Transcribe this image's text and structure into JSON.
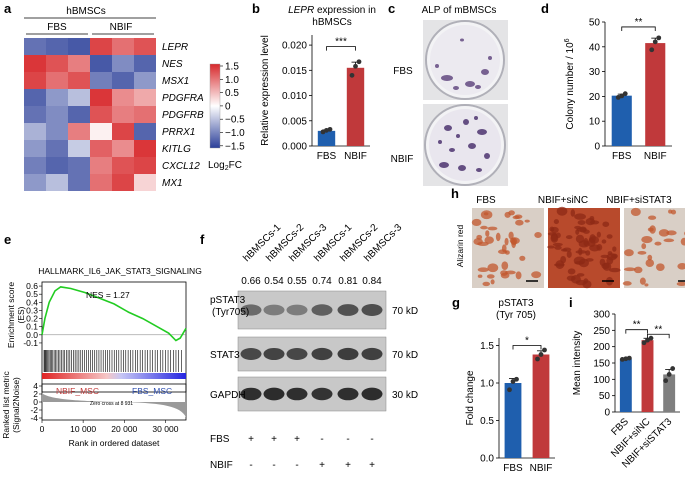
{
  "panels": {
    "a": {
      "label": "a",
      "group_title": "hBMSCs",
      "group_fbs": "FBS",
      "group_nbif": "NBIF",
      "genes": [
        "LEPR",
        "NES",
        "MSX1",
        "PDGFRA",
        "PDGFRB",
        "PRRX1",
        "KITLG",
        "CXCL12",
        "MX1"
      ],
      "colorbar_ticks": [
        "1.5",
        "1.0",
        "0.5",
        "0",
        "−0.5",
        "−1.0",
        "−1.5"
      ],
      "colorbar_label": "Log2FC",
      "colorbar_label_main": "Log",
      "colorbar_label_sub": "2",
      "colorbar_label_tail": "FC",
      "heatmap": [
        [
          -1.1,
          -1.2,
          -1.3,
          1.3,
          1.0,
          1.2
        ],
        [
          1.4,
          1.2,
          0.9,
          -1.3,
          -0.9,
          -1.2
        ],
        [
          1.3,
          1.0,
          1.2,
          -1.0,
          -1.2,
          -0.8
        ],
        [
          -1.2,
          -0.8,
          -0.5,
          1.4,
          0.8,
          0.6
        ],
        [
          -1.1,
          -0.9,
          -1.2,
          1.2,
          0.9,
          1.0
        ],
        [
          -0.6,
          -0.9,
          0.9,
          0.1,
          1.3,
          -1.2
        ],
        [
          -0.8,
          -1.1,
          -0.4,
          1.1,
          0.8,
          1.4
        ],
        [
          -1.0,
          -1.2,
          -1.1,
          0.9,
          1.2,
          1.3
        ],
        [
          -0.8,
          -0.5,
          -1.1,
          1.0,
          1.3,
          0.3
        ]
      ]
    },
    "b": {
      "label": "b",
      "title_gene": "LEPR",
      "title_rest": " expression in",
      "title_line2": "hBMSCs",
      "significance": "***"
    },
    "c": {
      "label": "c",
      "title": "ALP of mBMSCs",
      "row_fbs": "FBS",
      "row_nbif": "NBIF"
    },
    "d": {
      "label": "d",
      "significance": "**"
    },
    "e": {
      "label": "e",
      "gene_set": "HALLMARK_IL6_JAK_STAT3_SIGNALING",
      "nes": "NES = 1.27",
      "ylabel_es": "Enrichment score",
      "ylabel_es2": "(ES)",
      "ylabel_rank": "Ranked list metric",
      "ylabel_rank2": "(Signal2Noise)",
      "es_ticks": [
        "0.6",
        "0.5",
        "0.4",
        "0.3",
        "0.2",
        "0.1",
        "0.0",
        "-0.1"
      ],
      "rank_ticks": [
        "4",
        "2",
        "0",
        "-2",
        "-4"
      ],
      "x_ticks": [
        "0",
        "10 000",
        "20 000",
        "30 000"
      ],
      "xlabel": "Rank in ordered dataset",
      "left_label": "NBIF_MSC",
      "right_label": "FBS_MSC",
      "zero_cross": "Zero cross at 8 931"
    },
    "f": {
      "label": "f",
      "lanes": [
        "hBMSCs-1",
        "hBMSCs-2",
        "hBMSCs-3",
        "hBMSCs-1",
        "hBMSCs-2",
        "hBMSCs-3"
      ],
      "values": [
        "0.66",
        "0.54",
        "0.55",
        "0.74",
        "0.81",
        "0.84"
      ],
      "blots": [
        {
          "name": "pSTAT3",
          "name2": "(Tyr705)",
          "size": "70 kD"
        },
        {
          "name": "STAT3",
          "name2": "",
          "size": "70 kD"
        },
        {
          "name": "GAPDH",
          "name2": "",
          "size": "30 kD"
        }
      ],
      "row_fbs": "FBS",
      "row_nbif": "NBIF",
      "fbs_signs": [
        "+",
        "+",
        "+",
        "-",
        "-",
        "-"
      ],
      "nbif_signs": [
        "-",
        "-",
        "-",
        "+",
        "+",
        "+"
      ]
    },
    "g": {
      "label": "g",
      "title": "pSTAT3",
      "title2": "(Tyr 705)",
      "significance": "*"
    },
    "h": {
      "label": "h",
      "columns": [
        "FBS",
        "NBIF+siNC",
        "NBIF+siSTAT3"
      ],
      "row_label": "Alizarin red"
    },
    "i": {
      "label": "i",
      "sig1": "**",
      "sig2": "**"
    }
  },
  "chart_data": [
    {
      "type": "bar",
      "panel": "b",
      "categories": [
        "FBS",
        "NBIF"
      ],
      "values": [
        0.003,
        0.0155
      ],
      "points": [
        [
          0.0028,
          0.0031,
          0.0033
        ],
        [
          0.014,
          0.0158,
          0.0167
        ]
      ],
      "ylabel": "Relative expression level",
      "yticks": [
        "0.000",
        "0.005",
        "0.010",
        "0.015",
        "0.020"
      ],
      "ylim": [
        0,
        0.022
      ],
      "colors": [
        "#1f5fae",
        "#c0393b"
      ]
    },
    {
      "type": "bar",
      "panel": "d",
      "categories": [
        "FBS",
        "NBIF"
      ],
      "values": [
        20.3,
        41.5
      ],
      "points": [
        [
          19.6,
          20.2,
          21.1
        ],
        [
          38.8,
          42.0,
          43.6
        ]
      ],
      "ylabel": "Colony number / 10",
      "ylabel_sup": "6",
      "yticks": [
        "0",
        "10",
        "20",
        "30",
        "40",
        "50"
      ],
      "ylim": [
        0,
        50
      ],
      "colors": [
        "#1f5fae",
        "#c0393b"
      ]
    },
    {
      "type": "bar",
      "panel": "g",
      "categories": [
        "FBS",
        "NBIF"
      ],
      "values": [
        1.0,
        1.38
      ],
      "points": [
        [
          0.91,
          1.02,
          1.05
        ],
        [
          1.32,
          1.38,
          1.44
        ]
      ],
      "ylabel": "Fold change",
      "yticks": [
        "0.0",
        "0.5",
        "1.0",
        "1.5"
      ],
      "ylim": [
        0,
        1.6
      ],
      "colors": [
        "#1f5fae",
        "#c0393b"
      ]
    },
    {
      "type": "bar",
      "panel": "i",
      "categories": [
        "FBS",
        "NBIF+siNC",
        "NBIF+siSTAT3"
      ],
      "values": [
        163,
        220,
        115
      ],
      "points": [
        [
          161,
          163,
          165
        ],
        [
          212,
          220,
          226
        ],
        [
          96,
          115,
          133
        ]
      ],
      "ylabel": "Mean intensity",
      "yticks": [
        "0",
        "50",
        "100",
        "150",
        "200",
        "250",
        "300"
      ],
      "ylim": [
        0,
        300
      ],
      "colors": [
        "#1f5fae",
        "#c0393b",
        "#7f7f7f"
      ]
    }
  ]
}
